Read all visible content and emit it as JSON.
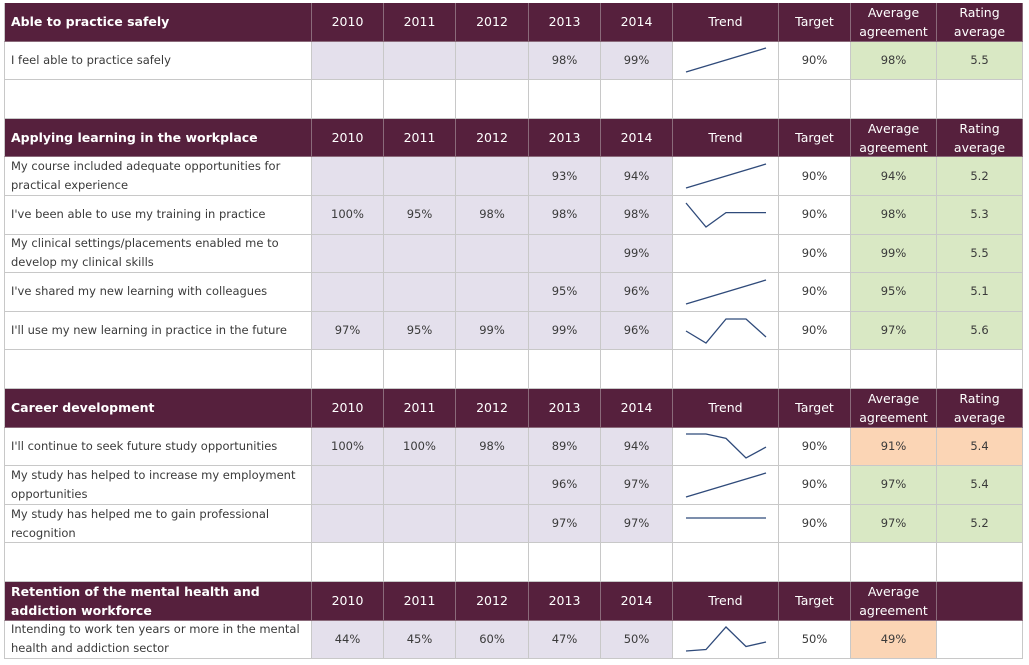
{
  "colors": {
    "header_bg": "#56203d",
    "year_bg": "#e4e0ec",
    "green": "#d9e8c4",
    "orange": "#fbd5b5",
    "sparkline": "#2f4a7a"
  },
  "sections": [
    {
      "title": "Able to practice safely",
      "headers": [
        "2010",
        "2011",
        "2012",
        "2013",
        "2014",
        "Trend",
        "Target",
        "Average agreement",
        "Rating average"
      ],
      "rows": [
        {
          "label": "I feel able to practice safely",
          "years": [
            "",
            "",
            "",
            "98%",
            "99%"
          ],
          "target": "90%",
          "avg": "98%",
          "rating": "5.5",
          "highlight": "green"
        }
      ]
    },
    {
      "title": "Applying learning in the workplace",
      "headers": [
        "2010",
        "2011",
        "2012",
        "2013",
        "2014",
        "Trend",
        "Target",
        "Average agreement",
        "Rating average"
      ],
      "rows": [
        {
          "label": "My course included adequate opportunities for practical experience",
          "years": [
            "",
            "",
            "",
            "93%",
            "94%"
          ],
          "target": "90%",
          "avg": "94%",
          "rating": "5.2",
          "highlight": "green"
        },
        {
          "label": "I've been able to use my training in practice",
          "years": [
            "100%",
            "95%",
            "98%",
            "98%",
            "98%"
          ],
          "target": "90%",
          "avg": "98%",
          "rating": "5.3",
          "highlight": "green"
        },
        {
          "label": "My clinical settings/placements enabled me to develop my clinical skills",
          "years": [
            "",
            "",
            "",
            "",
            "99%"
          ],
          "target": "90%",
          "avg": "99%",
          "rating": "5.5",
          "highlight": "green"
        },
        {
          "label": "I've shared my new learning with colleagues",
          "years": [
            "",
            "",
            "",
            "95%",
            "96%"
          ],
          "target": "90%",
          "avg": "95%",
          "rating": "5.1",
          "highlight": "green"
        },
        {
          "label": "I'll use my new learning in practice in the future",
          "years": [
            "97%",
            "95%",
            "99%",
            "99%",
            "96%"
          ],
          "target": "90%",
          "avg": "97%",
          "rating": "5.6",
          "highlight": "green"
        }
      ]
    },
    {
      "title": "Career development",
      "headers": [
        "2010",
        "2011",
        "2012",
        "2013",
        "2014",
        "Trend",
        "Target",
        "Average agreement",
        "Rating average"
      ],
      "rows": [
        {
          "label": "I'll continue to seek future study opportunities",
          "years": [
            "100%",
            "100%",
            "98%",
            "89%",
            "94%"
          ],
          "target": "90%",
          "avg": "91%",
          "rating": "5.4",
          "highlight": "orange"
        },
        {
          "label": "My study has helped to increase my employment opportunities",
          "years": [
            "",
            "",
            "",
            "96%",
            "97%"
          ],
          "target": "90%",
          "avg": "97%",
          "rating": "5.4",
          "highlight": "green"
        },
        {
          "label": "My study has helped me to gain professional recognition",
          "years": [
            "",
            "",
            "",
            "97%",
            "97%"
          ],
          "target": "90%",
          "avg": "97%",
          "rating": "5.2",
          "highlight": "green"
        }
      ]
    },
    {
      "title": "Retention of the mental health and addiction workforce",
      "headers": [
        "2010",
        "2011",
        "2012",
        "2013",
        "2014",
        "Trend",
        "Target",
        "Average agreement",
        ""
      ],
      "rows": [
        {
          "label": "Intending to work ten years or more in the mental health and addiction sector",
          "years": [
            "44%",
            "45%",
            "60%",
            "47%",
            "50%"
          ],
          "target": "50%",
          "avg": "49%",
          "rating": "",
          "highlight": "orange"
        }
      ]
    }
  ]
}
